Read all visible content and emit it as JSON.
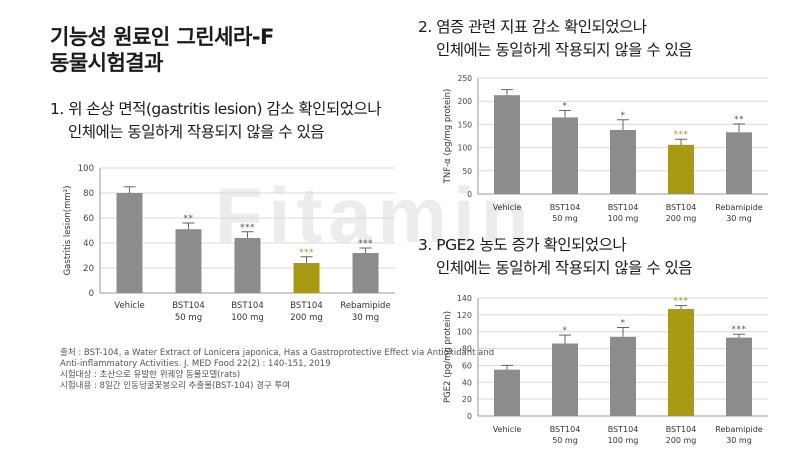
{
  "header": {
    "title_line1": "기능성 원료인 그린세라-F",
    "title_line2": "동물시험결과"
  },
  "sections": [
    {
      "line1": "1. 위 손상 면적(gastritis lesion) 감소 확인되었으나",
      "line2": "인체에는 동일하게 작용되지 않을 수 있음"
    },
    {
      "line1": "2. 염증 관련 지표 감소 확인되었으나",
      "line2": "인체에는 동일하게 작용되지 않을 수 있음"
    },
    {
      "line1": "3. PGE2 농도 증가 확인되었으나",
      "line2": "인체에는 동일하게 작용되지 않을 수 있음"
    }
  ],
  "watermark": "Fitamin",
  "colors": {
    "bar_gray": "#8c8c8c",
    "bar_gold": "#a89a12",
    "sig_gold": "#a89a12",
    "grid": "#d9d9d9"
  },
  "chart_data": [
    {
      "type": "bar",
      "ylabel": "Gastritis lesion(mm²)",
      "ylim": [
        0,
        100
      ],
      "yticks": [
        0,
        20,
        40,
        60,
        80,
        100
      ],
      "categories": [
        [
          "Vehicle",
          ""
        ],
        [
          "BST104",
          "50 mg"
        ],
        [
          "BST104",
          "100 mg"
        ],
        [
          "BST104",
          "200 mg"
        ],
        [
          "Rebamipide",
          "30 mg"
        ]
      ],
      "values": [
        80,
        51,
        44,
        24,
        32
      ],
      "errors": [
        5,
        5,
        5,
        5,
        4
      ],
      "significance": [
        "",
        "**",
        "***",
        "***",
        "***"
      ],
      "highlight_index": 3,
      "grid": true
    },
    {
      "type": "bar",
      "ylabel": "TNF-α (pg/mg protein)",
      "ylim": [
        0,
        250
      ],
      "yticks": [
        0,
        50,
        100,
        150,
        200,
        250
      ],
      "categories": [
        [
          "Vehicle",
          ""
        ],
        [
          "BST104",
          "50 mg"
        ],
        [
          "BST104",
          "100 mg"
        ],
        [
          "BST104",
          "200 mg"
        ],
        [
          "Rebamipide",
          "30 mg"
        ]
      ],
      "values": [
        213,
        165,
        138,
        106,
        133
      ],
      "errors": [
        12,
        15,
        22,
        12,
        18
      ],
      "significance": [
        "",
        "*",
        "*",
        "***",
        "**"
      ],
      "highlight_index": 3,
      "grid": true
    },
    {
      "type": "bar",
      "ylabel": "PGE2 (pg/mg protein)",
      "ylim": [
        0,
        140
      ],
      "yticks": [
        0,
        20,
        40,
        60,
        80,
        100,
        120,
        140
      ],
      "categories": [
        [
          "Vehicle",
          ""
        ],
        [
          "BST104",
          "50 mg"
        ],
        [
          "BST104",
          "100 mg"
        ],
        [
          "BST104",
          "200 mg"
        ],
        [
          "Rebamipide",
          "30 mg"
        ]
      ],
      "values": [
        55,
        86,
        94,
        127,
        93
      ],
      "errors": [
        5,
        10,
        11,
        4,
        4
      ],
      "significance": [
        "",
        "*",
        "*",
        "***",
        "***"
      ],
      "highlight_index": 3,
      "grid": true
    }
  ],
  "footnote": {
    "line1": "출처 : BST-104, a Water Extract of Lonicera japonica, Has a Gastroprotective Effect via Antioxidant and",
    "line2": "Anti-inflammatory Activities. J. MED Food 22(2) : 140-151, 2019",
    "line3": "시험대상 : 초산으로 유발한 위궤양 동물모델(rats)",
    "line4": "시험내용 : 8일간 인동덩굴꽃봉오리 추출물(BST-104) 경구 투여"
  }
}
